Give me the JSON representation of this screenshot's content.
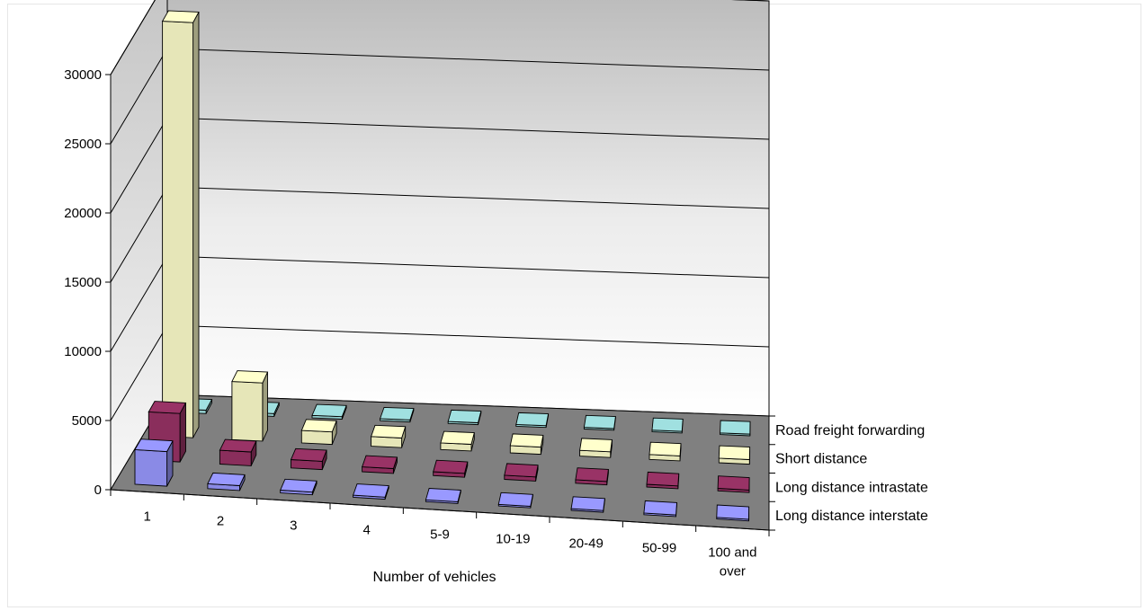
{
  "chart_data": {
    "type": "bar",
    "variant": "3d-column",
    "title": "",
    "xlabel": "Number of vehicles",
    "ylabel": "",
    "ylim": [
      0,
      30000
    ],
    "yticks": [
      "0",
      "5000",
      "10000",
      "15000",
      "20000",
      "25000",
      "30000"
    ],
    "categories": [
      "1",
      "2",
      "3",
      "4",
      "5-9",
      "10-19",
      "20-49",
      "50-99",
      "100 and over"
    ],
    "series": [
      {
        "name": "Long distance interstate",
        "color": "#9999ff",
        "values": [
          2500,
          350,
          200,
          150,
          130,
          120,
          100,
          90,
          80
        ]
      },
      {
        "name": "Long distance intrastate",
        "color": "#993366",
        "values": [
          3500,
          1000,
          600,
          350,
          280,
          300,
          250,
          200,
          180
        ]
      },
      {
        "name": "Short distance",
        "color": "#ffffcc",
        "values": [
          30000,
          4200,
          900,
          700,
          480,
          520,
          420,
          360,
          330
        ]
      },
      {
        "name": "Road freight forwarding",
        "color": "#a0e0e0",
        "values": [
          250,
          200,
          180,
          150,
          140,
          130,
          120,
          110,
          100
        ]
      }
    ],
    "grid": true,
    "legend": "right, as labels on depth axis"
  }
}
